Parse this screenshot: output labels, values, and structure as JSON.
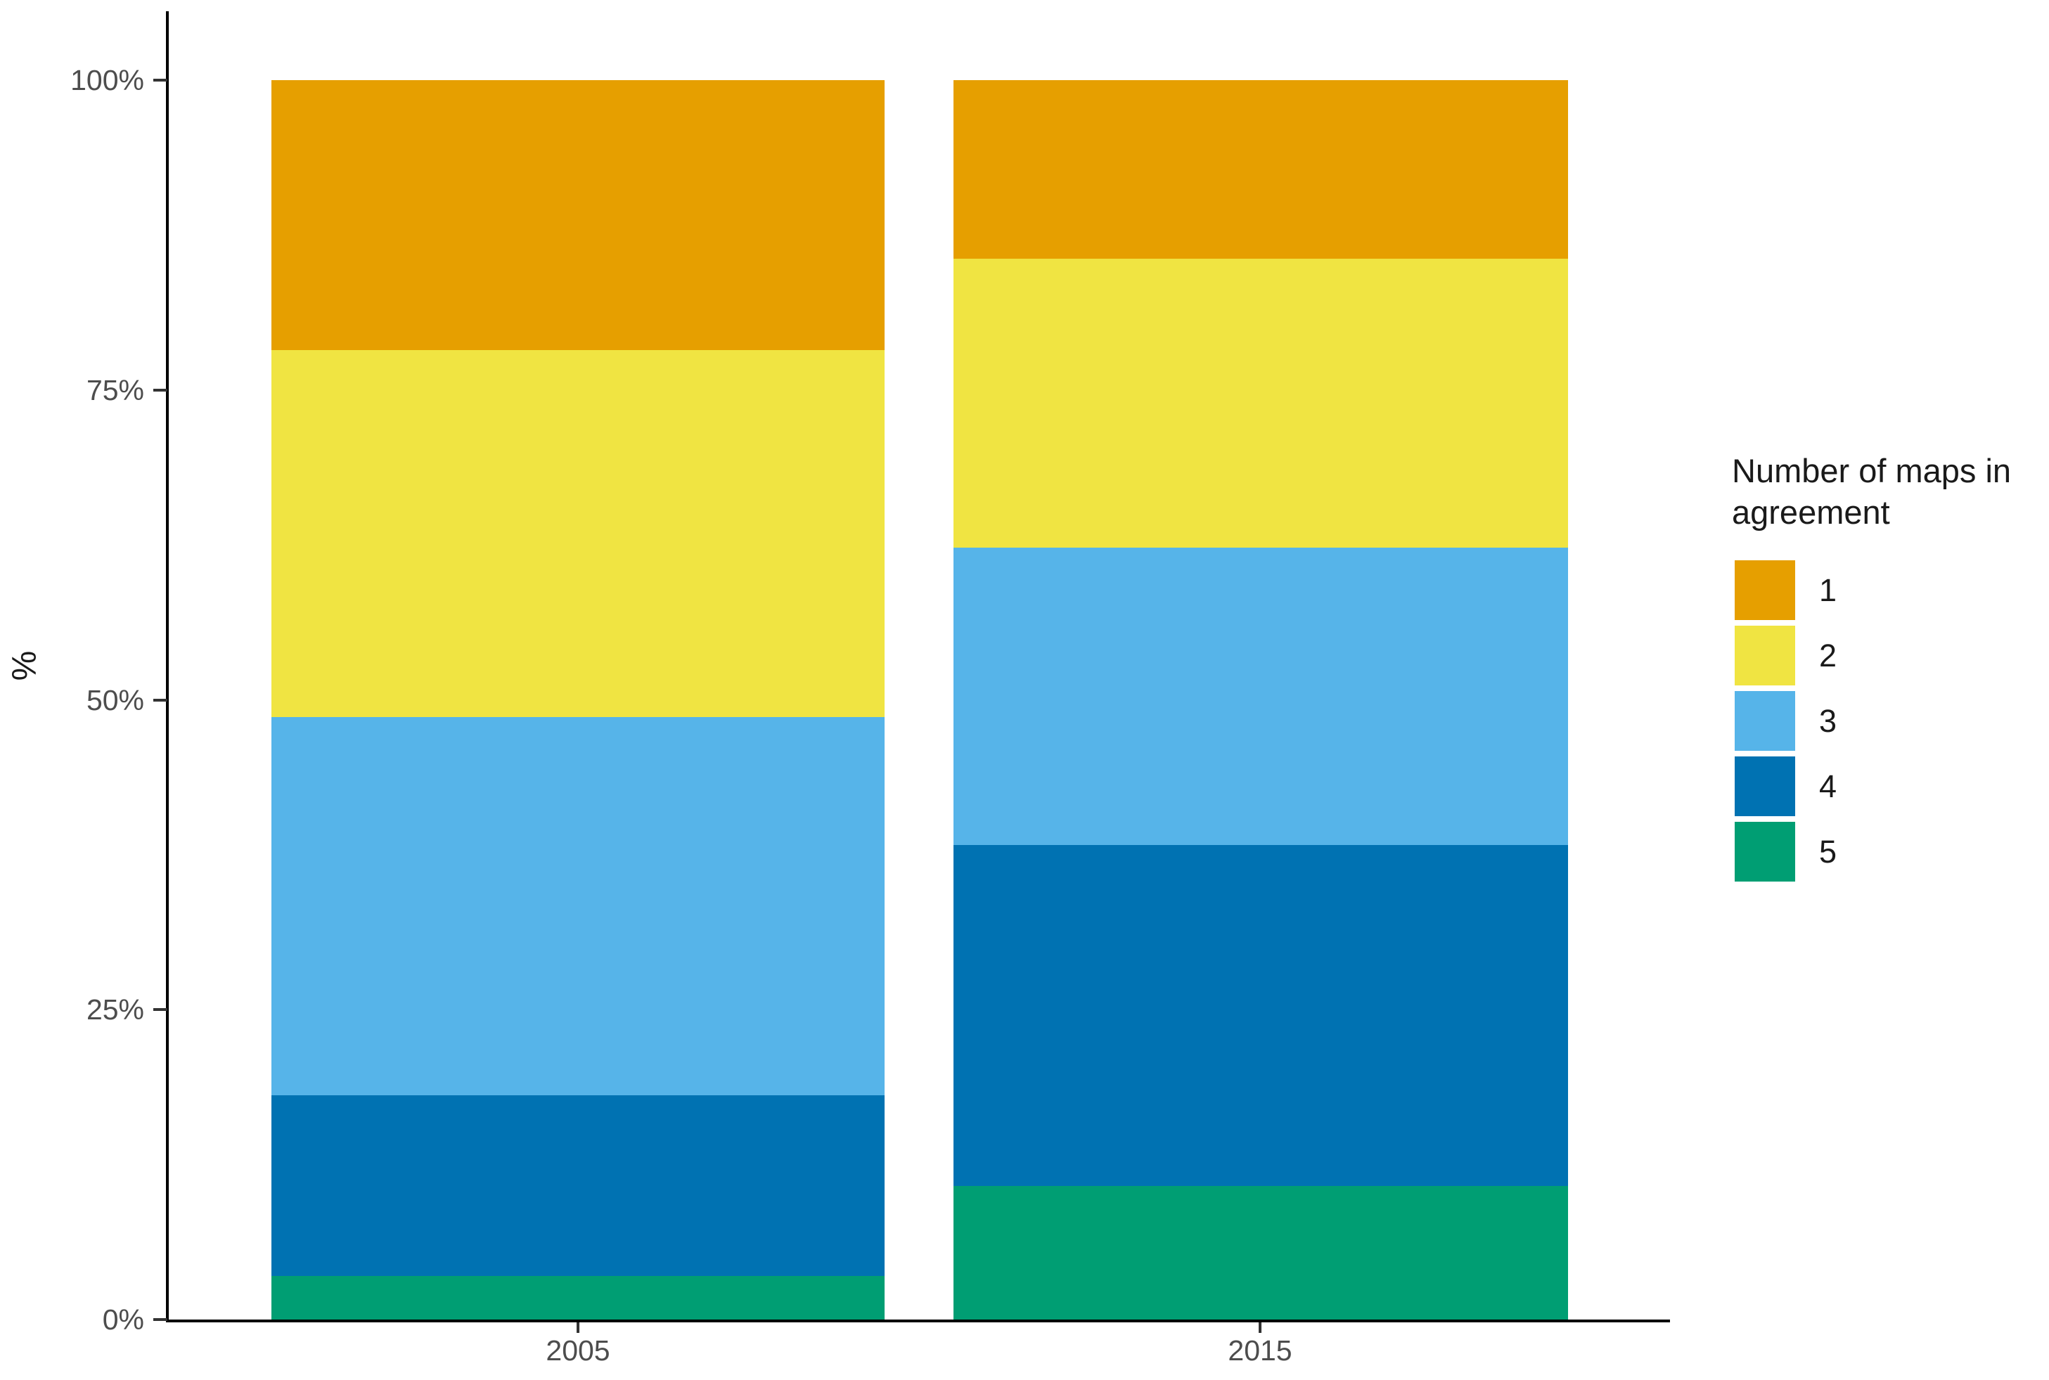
{
  "chart_data": {
    "type": "bar",
    "subtype": "stacked_percent",
    "ylabel": "%",
    "xlabel": "",
    "ylim": [
      0,
      100
    ],
    "categories": [
      "2005",
      "2015"
    ],
    "series": [
      {
        "name": "1",
        "color": "#E69F00",
        "values": [
          21.8,
          14.4
        ]
      },
      {
        "name": "2",
        "color": "#F0E442",
        "values": [
          29.6,
          23.3
        ]
      },
      {
        "name": "3",
        "color": "#56B4E9",
        "values": [
          30.5,
          24.0
        ]
      },
      {
        "name": "4",
        "color": "#0072B2",
        "values": [
          14.6,
          27.5
        ]
      },
      {
        "name": "5",
        "color": "#009E73",
        "values": [
          3.5,
          10.8
        ]
      }
    ],
    "series_order": "first series drawn at top of each bar, last at bottom",
    "y_ticks": [
      {
        "label": "0%",
        "value": 0
      },
      {
        "label": "25%",
        "value": 25
      },
      {
        "label": "50%",
        "value": 50
      },
      {
        "label": "75%",
        "value": 75
      },
      {
        "label": "100%",
        "value": 100
      }
    ],
    "legend_title": "Number of maps in agreement",
    "legend_position": "right",
    "grid": "off",
    "background": "#FFFFFF"
  }
}
